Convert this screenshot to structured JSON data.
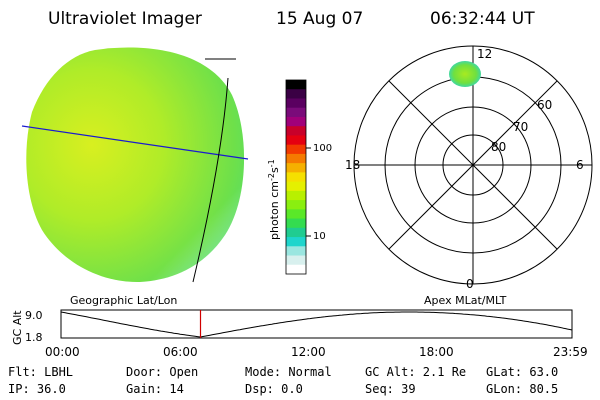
{
  "header": {
    "instrument": "Ultraviolet Imager",
    "date": "15 Aug 07",
    "time": "06:32:44 UT"
  },
  "colorbar": {
    "unit_prefix": "photon cm",
    "exp1": "-2",
    "mid": "s",
    "exp2": "-1",
    "ticks": [
      "100",
      "10"
    ],
    "colors": [
      "#000000",
      "#3a0044",
      "#5a0060",
      "#7a0b7a",
      "#a0007a",
      "#c8002a",
      "#e50010",
      "#f23a00",
      "#f57a00",
      "#f5b000",
      "#f5e000",
      "#e5f000",
      "#b8f000",
      "#8aef10",
      "#5ae828",
      "#34dc50",
      "#20cc90",
      "#1fd5cc",
      "#9ae6e0",
      "#d8f0ee",
      "#ffffff"
    ]
  },
  "geo_panel": {
    "label": "Geographic Lat/Lon"
  },
  "polar_panel": {
    "label": "Apex MLat/MLT",
    "hours": [
      "12",
      "18",
      "6",
      "0"
    ],
    "lat_labels": [
      "60",
      "70",
      "80"
    ]
  },
  "altitude_plot": {
    "ylabel": "GC Alt",
    "yticks": [
      "9.0",
      "1.8"
    ],
    "xticks": [
      "00:00",
      "06:00",
      "12:00",
      "18:00",
      "23:59"
    ],
    "marker_hour": 6.55
  },
  "footer": {
    "filter": "Flt: LBHL",
    "ip": "IP: 36.0",
    "door": "Door: Open",
    "gain": "Gain: 14",
    "mode": "Mode: Normal",
    "dsp": "Dsp:     0.0",
    "gc_alt": "GC Alt: 2.1 Re",
    "seq": "Seq: 39",
    "glat": "GLat:  63.0",
    "glon": "GLon:  80.5"
  }
}
